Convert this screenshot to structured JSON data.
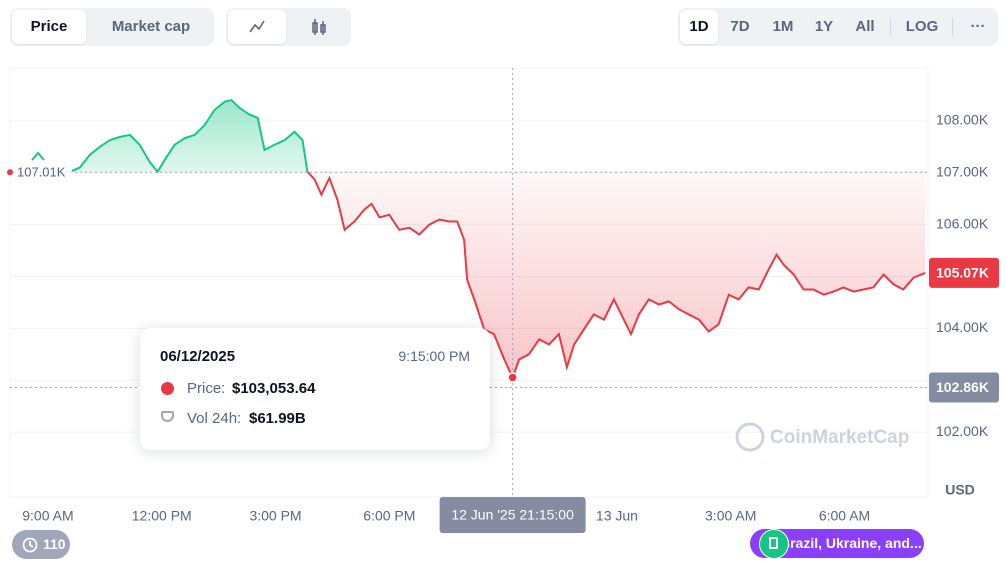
{
  "controls": {
    "metric": [
      "Price",
      "Market cap"
    ],
    "ranges": [
      "1D",
      "7D",
      "1M",
      "1Y",
      "All"
    ],
    "scale": "LOG",
    "more": "···"
  },
  "tooltip": {
    "date": "06/12/2025",
    "time": "9:15:00 PM",
    "price_label": "Price:",
    "price": "$103,053.64",
    "volume_label": "Vol 24h:",
    "volume": "$61.99B"
  },
  "watermark": "CoinMarketCap",
  "badges": {
    "history": "110",
    "news": "Brazil, Ukraine, and..."
  },
  "chart_data": {
    "type": "line",
    "currency": "USD",
    "x": [
      9.58,
      9.84,
      10.11,
      10.37,
      10.63,
      10.89,
      11.16,
      11.42,
      11.68,
      11.89,
      12.08,
      12.34,
      12.61,
      12.87,
      13.13,
      13.39,
      13.66,
      13.84,
      14.05,
      14.32,
      14.53,
      14.71,
      14.97,
      15.24,
      15.5,
      15.71,
      15.84,
      16.03,
      16.21,
      16.42,
      16.63,
      16.82,
      17.08,
      17.34,
      17.53,
      17.74,
      18,
      18.26,
      18.53,
      18.79,
      19.05,
      19.32,
      19.58,
      19.79,
      19.97,
      20.05,
      20.24,
      20.5,
      20.76,
      21.03,
      21.25,
      21.42,
      21.68,
      21.95,
      22.21,
      22.47,
      22.68,
      22.87,
      23.13,
      23.39,
      23.66,
      23.92,
      24.18,
      24.37,
      24.58,
      24.84,
      25.11,
      25.37,
      25.63,
      25.89,
      26.16,
      26.42,
      26.68,
      26.95,
      27.21,
      27.47,
      27.74,
      28,
      28.21,
      28.39,
      28.66,
      28.92,
      29.18,
      29.45,
      29.71,
      29.97,
      30.24,
      30.5,
      30.76,
      31.03,
      31.29,
      31.55,
      31.82,
      32.13
    ],
    "series": [
      {
        "name": "Price",
        "up_color": "#16c784",
        "down_color": "#ea3943",
        "values": [
          107020,
          107100,
          107350,
          107500,
          107630,
          107690,
          107730,
          107540,
          107210,
          107020,
          107250,
          107540,
          107670,
          107730,
          107920,
          108210,
          108370,
          108400,
          108250,
          108120,
          108060,
          107440,
          107540,
          107630,
          107790,
          107630,
          107020,
          106870,
          106580,
          106900,
          106480,
          105900,
          106060,
          106290,
          106400,
          106140,
          106190,
          105900,
          105940,
          105810,
          106000,
          106100,
          106060,
          106060,
          105710,
          104940,
          104560,
          103980,
          103890,
          103400,
          103053.64,
          103400,
          103500,
          103790,
          103690,
          103890,
          103250,
          103690,
          103980,
          104270,
          104170,
          104560,
          104170,
          103890,
          104270,
          104560,
          104460,
          104520,
          104370,
          104270,
          104170,
          103940,
          104080,
          104650,
          104560,
          104790,
          104750,
          105140,
          105420,
          105230,
          105040,
          104750,
          104750,
          104650,
          104710,
          104790,
          104710,
          104750,
          104790,
          105040,
          104850,
          104750,
          104980,
          105070
        ]
      }
    ],
    "baseline": {
      "value": 107010,
      "label": "107.01K"
    },
    "last_price": {
      "value": 105070,
      "label": "105.07K"
    },
    "cursor": {
      "x": {
        "value": 21.25,
        "label": "12 Jun '25 21:15:00"
      },
      "y": {
        "value": 102860,
        "label": "102.86K"
      }
    },
    "xlim": [
      8,
      32.2
    ],
    "xticks": [
      {
        "value": 9,
        "label": "9:00 AM"
      },
      {
        "value": 12,
        "label": "12:00 PM"
      },
      {
        "value": 15,
        "label": "3:00 PM"
      },
      {
        "value": 18,
        "label": "6:00 PM"
      },
      {
        "value": 24,
        "label": "13 Jun"
      },
      {
        "value": 27,
        "label": "3:00 AM"
      },
      {
        "value": 30,
        "label": "6:00 AM"
      }
    ],
    "ylim": [
      100750,
      109020
    ],
    "yticks": [
      {
        "value": 102000,
        "label": "102.00K"
      },
      {
        "value": 103000,
        "label": "103.00K"
      },
      {
        "value": 104000,
        "label": "104.00K"
      },
      {
        "value": 105000,
        "label": "105.00K"
      },
      {
        "value": 106000,
        "label": "106.00K"
      },
      {
        "value": 107000,
        "label": "107.00K"
      },
      {
        "value": 108000,
        "label": "108.00K"
      }
    ],
    "grid": true
  }
}
